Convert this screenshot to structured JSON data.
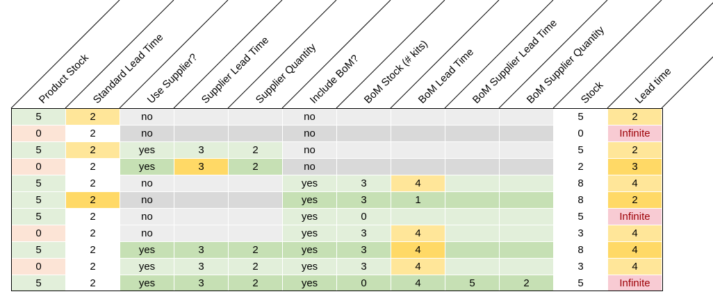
{
  "headers": [
    "Product Stock",
    "Standard Lead Time",
    "Use Supplier?",
    "Supplier Lead Time",
    "Supplier Quantity",
    "Include BoM?",
    "BoM Stock (# kits)",
    "BoM Lead Time",
    "BoM Supplier Lead Time",
    "BoM Supplier Quantity",
    "Stock",
    "Lead time"
  ],
  "rows": [
    [
      "5",
      "2",
      "no",
      "",
      "",
      "no",
      "",
      "",
      "",
      "",
      "5",
      "2"
    ],
    [
      "0",
      "2",
      "no",
      "",
      "",
      "no",
      "",
      "",
      "",
      "",
      "0",
      "Infinite"
    ],
    [
      "5",
      "2",
      "yes",
      "3",
      "2",
      "no",
      "",
      "",
      "",
      "",
      "5",
      "2"
    ],
    [
      "0",
      "2",
      "yes",
      "3",
      "2",
      "no",
      "",
      "",
      "",
      "",
      "2",
      "3"
    ],
    [
      "5",
      "2",
      "no",
      "",
      "",
      "yes",
      "3",
      "4",
      "",
      "",
      "8",
      "4"
    ],
    [
      "5",
      "2",
      "no",
      "",
      "",
      "yes",
      "3",
      "1",
      "",
      "",
      "8",
      "2"
    ],
    [
      "5",
      "2",
      "no",
      "",
      "",
      "yes",
      "0",
      "",
      "",
      "",
      "5",
      "Infinite"
    ],
    [
      "0",
      "2",
      "no",
      "",
      "",
      "yes",
      "3",
      "4",
      "",
      "",
      "3",
      "4"
    ],
    [
      "5",
      "2",
      "yes",
      "3",
      "2",
      "yes",
      "3",
      "4",
      "",
      "",
      "8",
      "4"
    ],
    [
      "0",
      "2",
      "yes",
      "3",
      "2",
      "yes",
      "3",
      "4",
      "",
      "",
      "3",
      "4"
    ],
    [
      "5",
      "2",
      "yes",
      "3",
      "2",
      "yes",
      "0",
      "4",
      "5",
      "2",
      "5",
      "Infinite"
    ]
  ],
  "fills": [
    [
      "lg",
      "ly",
      "gy",
      "gy",
      "gy",
      "gy",
      "gy",
      "gy",
      "gy",
      "gy",
      "w",
      "ly"
    ],
    [
      "lr",
      "w",
      "dg",
      "dg",
      "dg",
      "dg",
      "dg",
      "dg",
      "dg",
      "dg",
      "w",
      "pk"
    ],
    [
      "lg",
      "ly",
      "lg",
      "lg",
      "lg",
      "gy",
      "gy",
      "gy",
      "gy",
      "gy",
      "w",
      "ly"
    ],
    [
      "lr",
      "w",
      "mg",
      "oy",
      "mg",
      "dg",
      "dg",
      "dg",
      "dg",
      "dg",
      "w",
      "oy"
    ],
    [
      "lg",
      "w",
      "gy",
      "gy",
      "gy",
      "lg",
      "lg",
      "ly",
      "lg",
      "lg",
      "w",
      "ly"
    ],
    [
      "lg",
      "oy",
      "dg",
      "dg",
      "dg",
      "mg",
      "mg",
      "mg",
      "mg",
      "mg",
      "w",
      "oy"
    ],
    [
      "lg",
      "w",
      "gy",
      "gy",
      "gy",
      "lg",
      "lg",
      "lg",
      "lg",
      "lg",
      "w",
      "pk"
    ],
    [
      "lr",
      "w",
      "gy",
      "gy",
      "gy",
      "lg",
      "lg",
      "ly",
      "lg",
      "lg",
      "w",
      "ly"
    ],
    [
      "lg",
      "w",
      "mg",
      "mg",
      "mg",
      "mg",
      "mg",
      "oy",
      "mg",
      "mg",
      "w",
      "oy"
    ],
    [
      "lr",
      "w",
      "lg",
      "lg",
      "lg",
      "lg",
      "lg",
      "ly",
      "lg",
      "lg",
      "w",
      "ly"
    ],
    [
      "lg",
      "w",
      "mg",
      "mg",
      "mg",
      "mg",
      "mg",
      "mg",
      "mg",
      "mg",
      "w",
      "pk"
    ]
  ],
  "colors": {
    "w": "#ffffff",
    "lg": "#e2efda",
    "mg": "#c6e0b4",
    "ly": "#ffe699",
    "oy": "#ffd966",
    "lr": "#fce4d6",
    "pk": "#f8cbd3",
    "pk_text": "#9c0006",
    "gy": "#ededed",
    "dg": "#d9d9d9"
  }
}
